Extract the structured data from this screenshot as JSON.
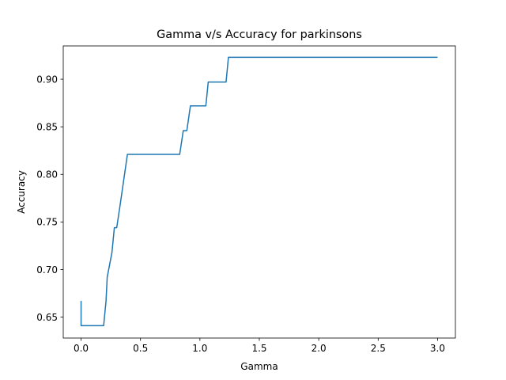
{
  "chart_data": {
    "type": "line",
    "title": "Gamma v/s Accuracy for parkinsons",
    "xlabel": "Gamma",
    "ylabel": "Accuracy",
    "xlim": [
      -0.15,
      3.15
    ],
    "ylim": [
      0.628,
      0.935
    ],
    "x_ticks": [
      0.0,
      0.5,
      1.0,
      1.5,
      2.0,
      2.5,
      3.0
    ],
    "x_tick_labels": [
      "0.0",
      "0.5",
      "1.0",
      "1.5",
      "2.0",
      "2.5",
      "3.0"
    ],
    "y_ticks": [
      0.65,
      0.7,
      0.75,
      0.8,
      0.85,
      0.9
    ],
    "y_tick_labels": [
      "0.65",
      "0.70",
      "0.75",
      "0.80",
      "0.85",
      "0.90"
    ],
    "grid": false,
    "legend": "none",
    "series": [
      {
        "color": "#1f77b4",
        "x": [
          0.0,
          0.0,
          0.19,
          0.21,
          0.22,
          0.26,
          0.28,
          0.3,
          0.33,
          0.36,
          0.39,
          0.83,
          0.86,
          0.89,
          0.92,
          1.05,
          1.07,
          1.22,
          1.24,
          3.0
        ],
        "y": [
          0.667,
          0.641,
          0.641,
          0.667,
          0.692,
          0.718,
          0.744,
          0.744,
          0.769,
          0.795,
          0.821,
          0.821,
          0.846,
          0.846,
          0.872,
          0.872,
          0.897,
          0.897,
          0.923,
          0.923
        ]
      }
    ]
  }
}
